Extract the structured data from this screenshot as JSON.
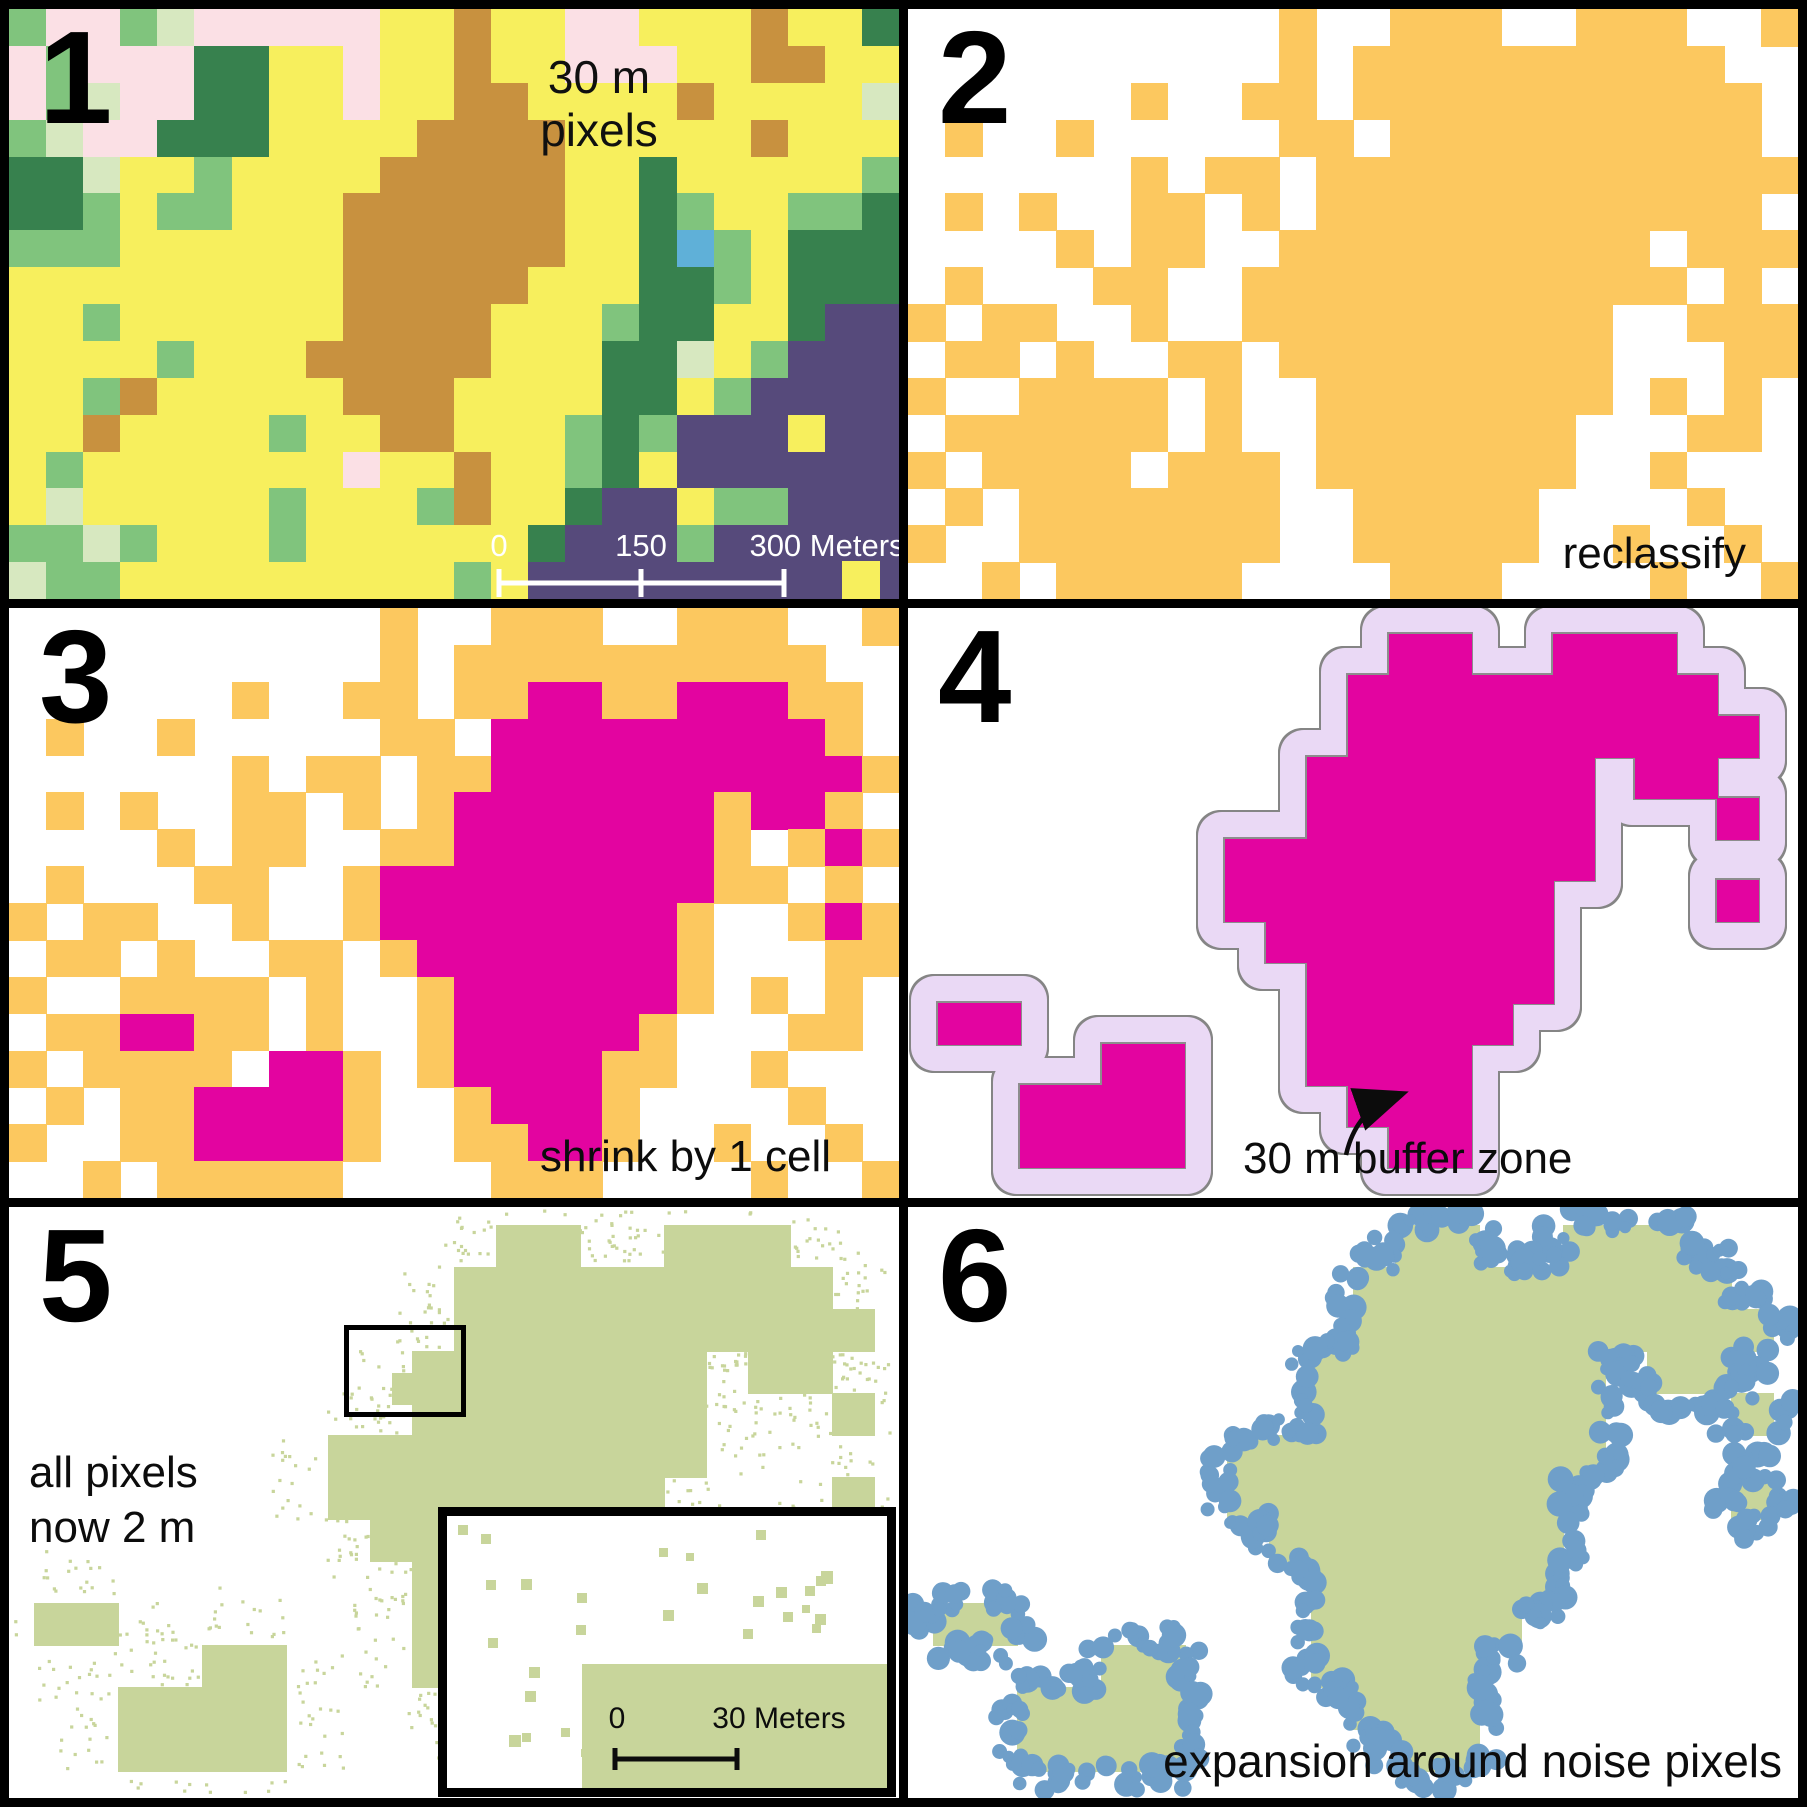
{
  "figure": {
    "rows": 3,
    "cols": 2,
    "panel_count": 6
  },
  "colors": {
    "background": "#000000",
    "panel_bg": "#ffffff",
    "orange": "#fcc85f",
    "magenta": "#e304a0",
    "lavender": "#ead9f5",
    "buffer_outline": "#858585",
    "core_outline": "#8d8d8d",
    "green": "#c8d59b",
    "blue": "#6f9fc9",
    "text": "#0c0c0c",
    "scalebar_white": "#ffffff",
    "landcover_palette": {
      "y": "#f7ef5d",
      "g": "#80c47d",
      "p": "#d7e8c0",
      "G": "#37814e",
      "P": "#fbe0e5",
      "b": "#c8913f",
      "u": "#564a7b",
      "B": "#5fb0d8"
    }
  },
  "panels": [
    {
      "number": "1",
      "title_lines": [
        "30 m",
        "pixels"
      ],
      "scalebar": {
        "start": "0",
        "mid": "150",
        "end": "300 Meters"
      }
    },
    {
      "number": "2",
      "caption": "reclassify"
    },
    {
      "number": "3",
      "caption": "shrink by 1 cell"
    },
    {
      "number": "4",
      "caption": "30 m buffer zone"
    },
    {
      "number": "5",
      "caption_lines": [
        "all pixels",
        "now 2 m"
      ],
      "inset": {
        "scale_start": "0",
        "scale_end": "30 Meters"
      }
    },
    {
      "number": "6",
      "caption": "expansion around noise pixels"
    }
  ],
  "grids": {
    "landcover": [
      "gPPgpPPPPPyybyyPPyyybyyG",
      "PgPPPGGyyPyybyyPPPyybbyy",
      "PgpPPGGyyPyybbyyyybyyyyp",
      "gpPPGGGyyyybbbbyyyyybyyy",
      "GGpyygyyyybbbbbyyGyyyyyg",
      "GGgyggyyybbbbbbyyGgyyggG",
      "gggyyyyyybbbbbbyyGBgyGGG",
      "yyyyyyyyybbbbbyyyGGgyGGG",
      "yygyyyyyybbbbyyygGGyyGuu",
      "yyyygyyybbbbbyyyGGpyguuu",
      "yygbyyyyybbbyyyyGGyguuuu",
      "yybyyyygyybbyyygGguuuyuu",
      "ygyyyyyyyPyybyygGyuuuuuu",
      "ypyyyyygyyygbyyGuuygguuu",
      "ggpgyyygyyyyyyGuuuguuuuu",
      "pggyyyyyyyyygyuuuuuuuuuu"
    ],
    "reclass": [
      "..........o..ooo..ooo..o",
      "..........o.oooooooooo..",
      "......o..oo.oommoommmoo.",
      ".o..o.....oo.mmmmmmmmmo.",
      "......o.oo.oommmmmmmmmmo",
      ".o.o..oo.o.ommmmmmmommo.",
      "....o.oo..oommmmmmmo.omo",
      ".o...oo..ommmmmmmmmoo.o.",
      "o.oo..o..ommmmmmmmo..omo",
      ".oo.o..oo.ommmmmmmo...oo",
      "o..oooo.o..ommmmmmo.o.o.",
      ".oommoo.o..ommmmmo...oo.",
      "o.oooo.mmo.ommmmoo..o...",
      ".o.oommmmo..ommmo....o..",
      "o..oommmmo..oommo..o..o.",
      "..o.ooooo....ooo....o..o"
    ]
  }
}
